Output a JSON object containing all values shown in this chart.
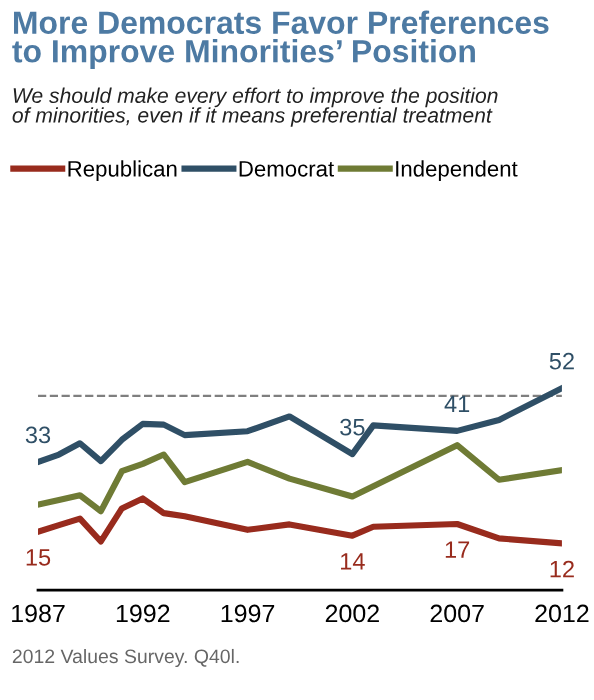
{
  "chart_data": {
    "type": "line",
    "title": "More Democrats Favor Preferences\nto Improve Minorities’ Position",
    "subtitle": "We should make every effort to improve the position\nof minorities, even if it means preferential treatment",
    "annotations": [
      "2012 Values Survey. Q40l."
    ],
    "xlim": [
      1987,
      2012
    ],
    "xticks": [
      1987,
      1992,
      1997,
      2002,
      2007,
      2012
    ],
    "tick_labels": "x",
    "grid": false,
    "legend": "top",
    "marker": "none",
    "line_style": "solid",
    "ref_lines": [
      {
        "axis": "y",
        "value": 50,
        "color": "#7f7f7f",
        "line_style": "dashed"
      }
    ],
    "series": [
      {
        "name": "Republican",
        "color": "#982b1d",
        "x": [
          1987,
          1988,
          1989,
          1990,
          1991,
          1992,
          1993,
          1994,
          1997,
          1999,
          2002,
          2003,
          2007,
          2009,
          2012
        ],
        "values": [
          15,
          16.7,
          18.4,
          12.5,
          21,
          23.6,
          19.8,
          19,
          15.5,
          16.9,
          14,
          16.3,
          17,
          13.3,
          12
        ],
        "value_labels": [
          "15",
          null,
          null,
          null,
          null,
          null,
          null,
          null,
          null,
          null,
          "14",
          null,
          "17",
          null,
          "12"
        ]
      },
      {
        "name": "Democrat",
        "color": "#2f4f66",
        "x": [
          1987,
          1988,
          1989,
          1990,
          1991,
          1992,
          1993,
          1994,
          1997,
          1999,
          2002,
          2003,
          2007,
          2009,
          2012
        ],
        "values": [
          33,
          34.9,
          37.8,
          33.2,
          38.7,
          42.8,
          42.6,
          39.9,
          40.9,
          44.7,
          35,
          42.4,
          41,
          43.8,
          52
        ],
        "value_labels": [
          "33",
          null,
          null,
          null,
          null,
          null,
          null,
          null,
          null,
          null,
          "35",
          null,
          "41",
          null,
          "52"
        ]
      },
      {
        "name": "Independent",
        "color": "#6f7b35",
        "x": [
          1987,
          1988,
          1989,
          1990,
          1991,
          1992,
          1993,
          1994,
          1997,
          1999,
          2002,
          2003,
          2007,
          2009,
          2012
        ],
        "values": [
          22,
          23.2,
          24.4,
          20.3,
          30.6,
          32.5,
          34.9,
          27.8,
          33,
          28.7,
          24.1,
          26.7,
          37.3,
          28.4,
          30.9
        ]
      }
    ]
  }
}
